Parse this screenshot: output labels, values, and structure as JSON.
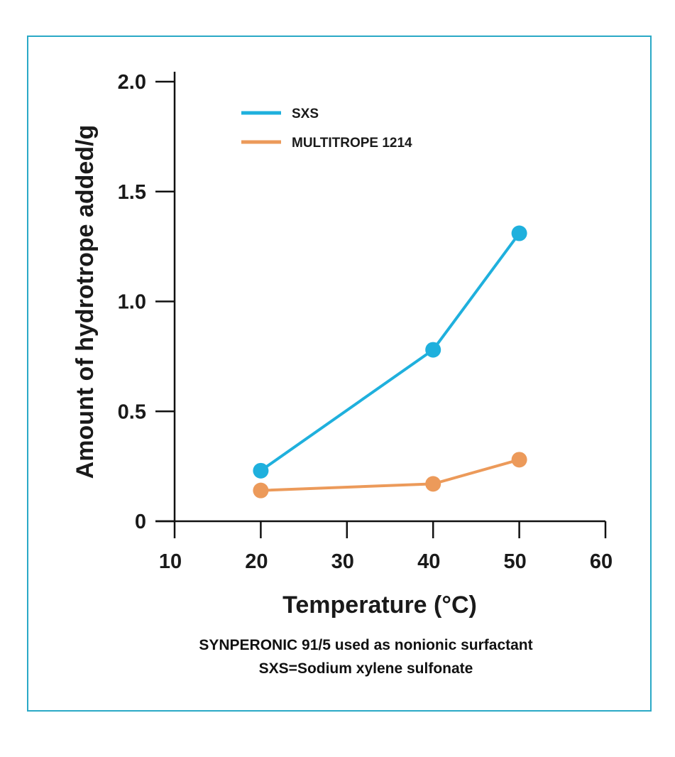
{
  "chart_data": {
    "type": "line",
    "xlabel": "Temperature (°C)",
    "ylabel": "Amount of hydrotrope added/g",
    "xlim": [
      10,
      60
    ],
    "ylim": [
      0,
      2.0
    ],
    "x_ticks": [
      10,
      20,
      30,
      40,
      50,
      60
    ],
    "y_ticks": [
      0,
      0.5,
      1.0,
      1.5,
      2.0
    ],
    "y_tick_labels": [
      "0",
      "0.5",
      "1.0",
      "1.5",
      "2.0"
    ],
    "grid": false,
    "legend_position": "top-left",
    "series": [
      {
        "name": "SXS",
        "color": "#1fb0dd",
        "x": [
          20,
          40,
          50
        ],
        "y": [
          0.23,
          0.78,
          1.31
        ]
      },
      {
        "name": "MULTITROPE 1214",
        "color": "#ec9a5a",
        "x": [
          20,
          40,
          50
        ],
        "y": [
          0.14,
          0.17,
          0.28
        ]
      }
    ]
  },
  "notes": {
    "line1": "SYNPERONIC 91/5 used as nonionic surfactant",
    "line2": "SXS=Sodium xylene sulfonate"
  }
}
